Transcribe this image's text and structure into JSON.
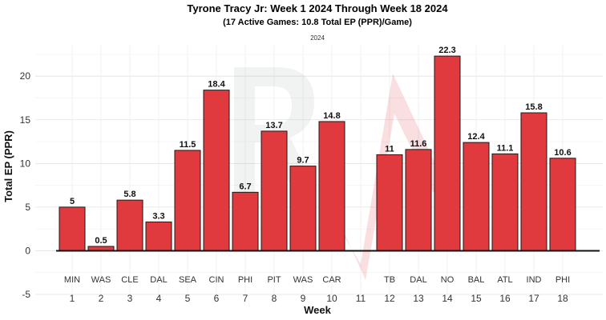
{
  "chart_data": {
    "type": "bar",
    "title": "Tyrone Tracy Jr: Week 1 2024 Through Week 18 2024",
    "subtitle": "(17 Active Games: 10.8 Total EP (PPR)/Game)",
    "facet_label": "2024",
    "xlabel": "Week",
    "ylabel": "Total EP (PPR)",
    "ylim": [
      -5,
      23.5
    ],
    "yticks": [
      -5,
      0,
      5,
      10,
      15,
      20
    ],
    "grid": true,
    "bar_color": "#e03a3e",
    "weeks": [
      1,
      2,
      3,
      4,
      5,
      6,
      7,
      8,
      9,
      10,
      11,
      12,
      13,
      14,
      15,
      16,
      17,
      18
    ],
    "opponents": [
      "MIN",
      "WAS",
      "CLE",
      "DAL",
      "SEA",
      "CIN",
      "PHI",
      "PIT",
      "WAS",
      "CAR",
      "",
      "TB",
      "DAL",
      "NO",
      "BAL",
      "ATL",
      "IND",
      "PHI"
    ],
    "values": [
      5,
      0.5,
      5.8,
      3.3,
      11.5,
      18.4,
      6.7,
      13.7,
      9.7,
      14.8,
      null,
      11,
      11.6,
      22.3,
      12.4,
      11.1,
      15.8,
      10.6
    ],
    "value_labels": [
      "5",
      "0.5",
      "5.8",
      "3.3",
      "11.5",
      "18.4",
      "6.7",
      "13.7",
      "9.7",
      "14.8",
      "",
      "11",
      "11.6",
      "22.3",
      "12.4",
      "11.1",
      "15.8",
      "10.6"
    ]
  }
}
